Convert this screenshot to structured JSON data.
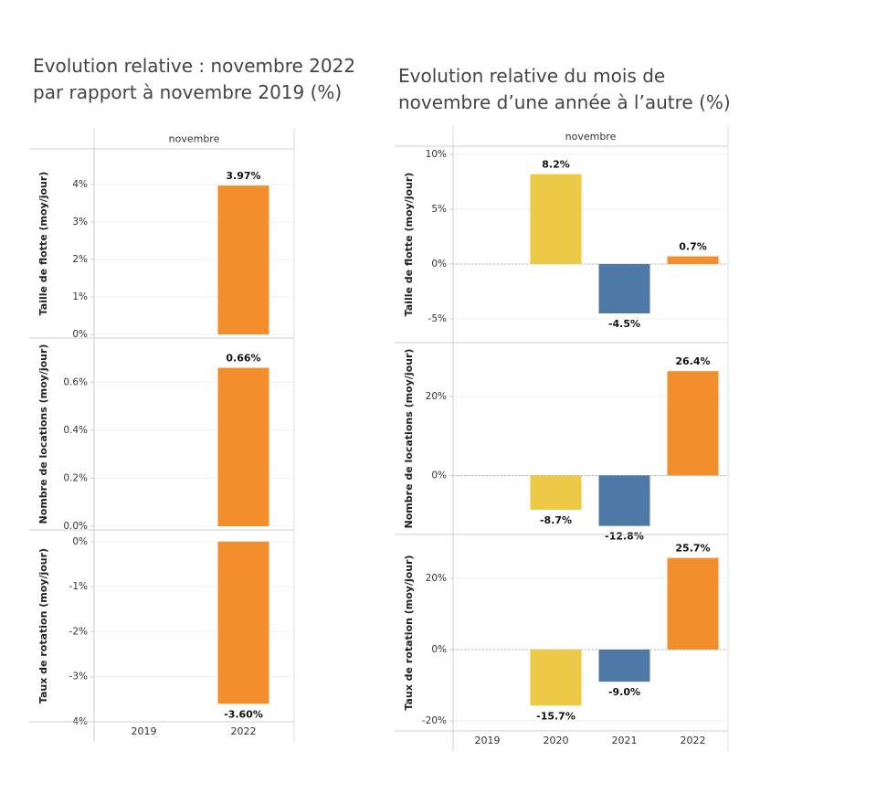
{
  "titles": {
    "left_line1": "Evolution relative : novembre 2022",
    "left_line2": "par rapport à novembre 2019 (%)",
    "right_line1": "Evolution relative du mois de",
    "right_line2": "novembre d’une année à l’autre (%)"
  },
  "chart_data": [
    {
      "type": "bar",
      "title": "Evolution relative : novembre 2022 par rapport à novembre 2019 (%)",
      "column_header": "novembre",
      "categories": [
        "2019",
        "2022"
      ],
      "panels": [
        {
          "ylabel": "Taille de flotte (moy/jour)",
          "ylim": [
            0,
            4.35
          ],
          "ticks": [
            0,
            1,
            2,
            3,
            4
          ],
          "tick_labels": [
            "0%",
            "1%",
            "2%",
            "3%",
            "4%"
          ],
          "values": [
            null,
            3.97
          ],
          "labels": [
            "",
            "3.97%"
          ],
          "colors": [
            "",
            "#F28E2B"
          ]
        },
        {
          "ylabel": "Nombre de locations (moy/jour)",
          "ylim": [
            0,
            0.706
          ],
          "ticks": [
            0,
            0.2,
            0.4,
            0.6
          ],
          "tick_labels": [
            "0.0%",
            "0.2%",
            "0.4%",
            "0.6%"
          ],
          "values": [
            null,
            0.66
          ],
          "labels": [
            "",
            "0.66%"
          ],
          "colors": [
            "",
            "#F28E2B"
          ]
        },
        {
          "ylabel": "Taux de rotation (moy/jour)",
          "ylim": [
            -4.0,
            0.2
          ],
          "ticks": [
            0,
            -1,
            -2,
            -3,
            -4
          ],
          "tick_labels": [
            "0%",
            "-1%",
            "-2%",
            "-3%",
            "-4%"
          ],
          "values": [
            null,
            -3.6
          ],
          "labels": [
            "",
            "-3.60%"
          ],
          "colors": [
            "",
            "#F28E2B"
          ]
        }
      ]
    },
    {
      "type": "bar",
      "title": "Evolution relative du mois de novembre d’une année à l’autre (%)",
      "column_header": "novembre",
      "categories": [
        "2019",
        "2020",
        "2021",
        "2022"
      ],
      "panels": [
        {
          "ylabel": "Taille de flotte (moy/jour)",
          "ylim": [
            -6.0,
            10.0
          ],
          "ticks": [
            10,
            5,
            0,
            -5
          ],
          "tick_labels": [
            "10%",
            "5%",
            "0%",
            "-5%"
          ],
          "zero_line": true,
          "values": [
            null,
            8.2,
            -4.5,
            0.7
          ],
          "labels": [
            "",
            "8.2%",
            "-4.5%",
            "0.7%"
          ],
          "colors": [
            "",
            "#EDC948",
            "#4E79A7",
            "#F28E2B"
          ]
        },
        {
          "ylabel": "Nombre de locations (moy/jour)",
          "ylim": [
            -17.5,
            32.0
          ],
          "ticks": [
            20,
            0
          ],
          "tick_labels": [
            "20%",
            "0%"
          ],
          "zero_line": true,
          "values": [
            null,
            -8.7,
            -12.8,
            26.4
          ],
          "labels": [
            "",
            "-8.7%",
            "-12.8%",
            "26.4%"
          ],
          "colors": [
            "",
            "#EDC948",
            "#4E79A7",
            "#F28E2B"
          ]
        },
        {
          "ylabel": "Taux de rotation (moy/jour)",
          "ylim": [
            -20.5,
            31.0
          ],
          "ticks": [
            20,
            0,
            -20
          ],
          "tick_labels": [
            "20%",
            "0%",
            "-20%"
          ],
          "zero_line": true,
          "values": [
            null,
            -15.7,
            -9.0,
            25.7
          ],
          "labels": [
            "",
            "-15.7%",
            "-9.0%",
            "25.7%"
          ],
          "colors": [
            "",
            "#EDC948",
            "#4E79A7",
            "#F28E2B"
          ]
        }
      ]
    }
  ]
}
